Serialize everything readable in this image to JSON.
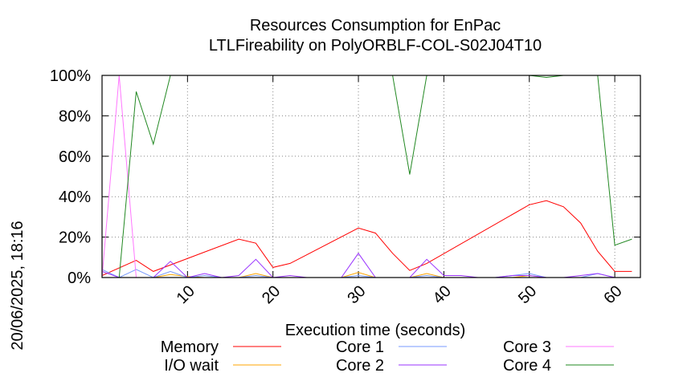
{
  "chart_data": {
    "type": "line",
    "title": "Resources Consumption for EnPac",
    "subtitle": "LTLFireability on PolyORBLF-COL-S02J04T10",
    "xlabel": "Execution time (seconds)",
    "ylabel": "",
    "timestamp": "20/06/2025, 18:16",
    "xlim": [
      0,
      63
    ],
    "ylim": [
      0,
      100
    ],
    "x_ticks": [
      10,
      20,
      30,
      40,
      50,
      60
    ],
    "x_tick_labels": [
      "10",
      "20",
      "30",
      "40",
      "50",
      "60"
    ],
    "y_ticks": [
      0,
      20,
      40,
      60,
      80,
      100
    ],
    "y_tick_labels": [
      "0%",
      "20%",
      "40%",
      "60%",
      "80%",
      "100%"
    ],
    "grid": true,
    "legend_position": "bottom",
    "series": [
      {
        "name": "Memory",
        "color": "#ff0000",
        "points": [
          [
            0,
            1
          ],
          [
            4,
            8.5
          ],
          [
            6,
            3
          ],
          [
            16,
            19
          ],
          [
            18,
            17
          ],
          [
            20,
            5
          ],
          [
            22,
            7
          ],
          [
            30,
            24.5
          ],
          [
            32,
            22
          ],
          [
            34,
            12
          ],
          [
            36,
            3.5
          ],
          [
            38,
            7
          ],
          [
            50,
            36
          ],
          [
            52,
            38
          ],
          [
            54,
            35
          ],
          [
            56,
            27
          ],
          [
            58,
            13
          ],
          [
            60,
            3
          ],
          [
            62,
            3
          ]
        ]
      },
      {
        "name": "I/O wait",
        "color": "#ffa500",
        "points": [
          [
            0,
            0
          ],
          [
            2,
            0
          ],
          [
            4,
            0
          ],
          [
            6,
            0
          ],
          [
            8,
            1.5
          ],
          [
            10,
            0.5
          ],
          [
            12,
            0
          ],
          [
            14,
            0
          ],
          [
            16,
            0
          ],
          [
            18,
            2
          ],
          [
            20,
            0
          ],
          [
            22,
            0
          ],
          [
            24,
            0
          ],
          [
            26,
            0
          ],
          [
            28,
            0
          ],
          [
            30,
            2.5
          ],
          [
            32,
            0
          ],
          [
            34,
            0
          ],
          [
            36,
            0
          ],
          [
            38,
            2
          ],
          [
            40,
            0
          ],
          [
            42,
            0
          ],
          [
            44,
            0
          ],
          [
            46,
            0
          ],
          [
            48,
            0
          ],
          [
            50,
            1
          ],
          [
            52,
            0
          ],
          [
            54,
            0
          ],
          [
            56,
            0
          ],
          [
            58,
            0
          ],
          [
            60,
            0
          ],
          [
            62,
            0
          ]
        ]
      },
      {
        "name": "Core 1",
        "color": "#7799ff",
        "points": [
          [
            0,
            4
          ],
          [
            2,
            0
          ],
          [
            4,
            4
          ],
          [
            6,
            0
          ],
          [
            8,
            3
          ],
          [
            10,
            0
          ],
          [
            12,
            1
          ],
          [
            14,
            0
          ],
          [
            16,
            0
          ],
          [
            18,
            1
          ],
          [
            20,
            0
          ],
          [
            22,
            0
          ],
          [
            24,
            0
          ],
          [
            26,
            0
          ],
          [
            28,
            0
          ],
          [
            30,
            1
          ],
          [
            32,
            0
          ],
          [
            34,
            0
          ],
          [
            36,
            0
          ],
          [
            38,
            1
          ],
          [
            40,
            0
          ],
          [
            42,
            0
          ],
          [
            44,
            0
          ],
          [
            46,
            0
          ],
          [
            48,
            1
          ],
          [
            50,
            2
          ],
          [
            52,
            0
          ],
          [
            54,
            0
          ],
          [
            56,
            0
          ],
          [
            58,
            2
          ],
          [
            60,
            0
          ],
          [
            62,
            0
          ]
        ]
      },
      {
        "name": "Core 2",
        "color": "#9933ff",
        "points": [
          [
            0,
            3
          ],
          [
            2,
            0
          ],
          [
            4,
            0
          ],
          [
            6,
            0
          ],
          [
            8,
            8
          ],
          [
            10,
            0
          ],
          [
            12,
            2
          ],
          [
            14,
            0
          ],
          [
            16,
            1
          ],
          [
            18,
            9
          ],
          [
            20,
            0
          ],
          [
            22,
            1
          ],
          [
            24,
            0
          ],
          [
            26,
            0
          ],
          [
            28,
            0
          ],
          [
            30,
            12
          ],
          [
            32,
            0
          ],
          [
            34,
            0
          ],
          [
            36,
            0
          ],
          [
            38,
            9
          ],
          [
            40,
            1
          ],
          [
            42,
            1
          ],
          [
            44,
            0
          ],
          [
            46,
            0
          ],
          [
            48,
            1
          ],
          [
            50,
            1
          ],
          [
            52,
            0
          ],
          [
            54,
            0
          ],
          [
            56,
            1
          ],
          [
            58,
            2
          ],
          [
            60,
            0
          ],
          [
            62,
            0
          ]
        ]
      },
      {
        "name": "Core 3",
        "color": "#ff77ff",
        "points": [
          [
            0,
            0
          ],
          [
            2,
            100
          ],
          [
            4,
            0
          ],
          [
            6,
            0
          ],
          [
            8,
            0
          ],
          [
            10,
            0
          ],
          [
            12,
            0
          ],
          [
            14,
            0
          ],
          [
            16,
            0
          ],
          [
            18,
            0
          ],
          [
            20,
            0
          ],
          [
            22,
            0
          ],
          [
            24,
            0
          ],
          [
            26,
            0
          ],
          [
            28,
            0
          ],
          [
            30,
            0
          ],
          [
            32,
            0
          ],
          [
            34,
            0
          ],
          [
            36,
            0
          ],
          [
            38,
            0
          ],
          [
            40,
            0
          ],
          [
            42,
            0
          ],
          [
            44,
            0
          ],
          [
            46,
            0
          ],
          [
            48,
            0
          ],
          [
            50,
            0
          ],
          [
            52,
            0
          ],
          [
            54,
            0
          ],
          [
            56,
            0
          ],
          [
            58,
            0
          ],
          [
            60,
            0
          ],
          [
            62,
            0
          ]
        ]
      },
      {
        "name": "Core 4",
        "color": "#228822",
        "points": [
          [
            0,
            0
          ],
          [
            2,
            0
          ],
          [
            4,
            92
          ],
          [
            6,
            66
          ],
          [
            8,
            100
          ],
          [
            10,
            100
          ],
          [
            12,
            100
          ],
          [
            14,
            100
          ],
          [
            16,
            100
          ],
          [
            18,
            100
          ],
          [
            20,
            100
          ],
          [
            22,
            100
          ],
          [
            24,
            100
          ],
          [
            26,
            100
          ],
          [
            28,
            100
          ],
          [
            30,
            100
          ],
          [
            32,
            100
          ],
          [
            34,
            100
          ],
          [
            36,
            51
          ],
          [
            38,
            100
          ],
          [
            40,
            100
          ],
          [
            42,
            100
          ],
          [
            44,
            100
          ],
          [
            46,
            100
          ],
          [
            48,
            100
          ],
          [
            50,
            100
          ],
          [
            52,
            99
          ],
          [
            54,
            100
          ],
          [
            56,
            100
          ],
          [
            58,
            100
          ],
          [
            60,
            16
          ],
          [
            62,
            19
          ]
        ]
      }
    ]
  }
}
